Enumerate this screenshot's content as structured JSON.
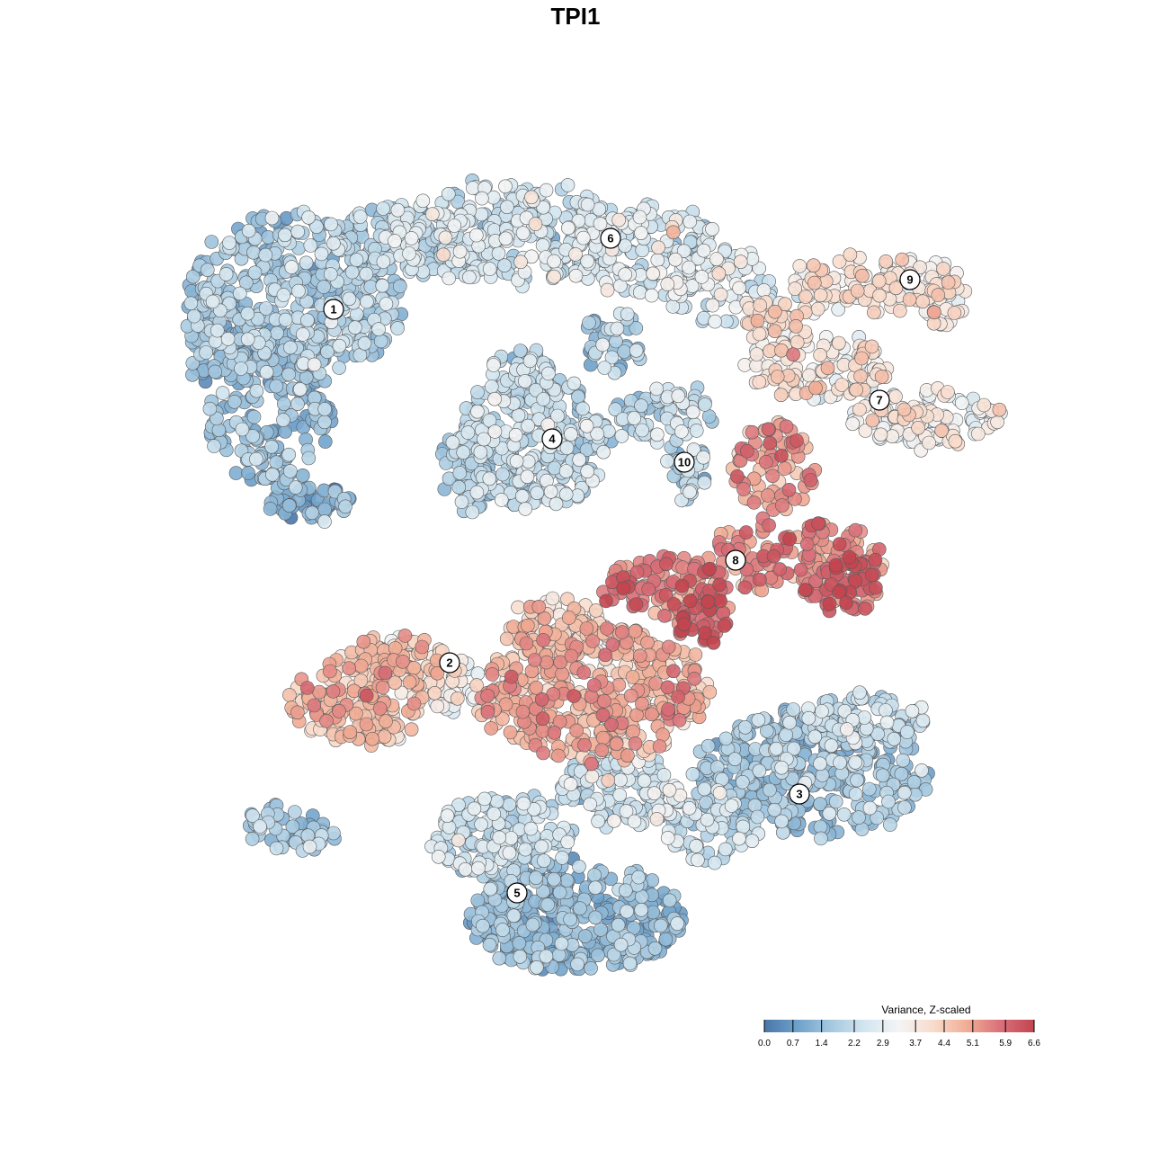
{
  "chart_data": {
    "type": "scatter",
    "title": "TPI1",
    "xlabel": "",
    "ylabel": "",
    "grid": false,
    "axes_visible": false,
    "point_style": {
      "stroke": "#5a5a5a",
      "opacity": 0.9
    },
    "legend": {
      "title": "Variance, Z-scaled",
      "placement": "bottom-right",
      "ticks": [
        0.0,
        0.7,
        1.4,
        2.2,
        2.9,
        3.7,
        4.4,
        5.1,
        5.9,
        6.6
      ],
      "tick_labels": [
        "0.0",
        "0.7",
        "1.4",
        "2.2",
        "2.9",
        "3.7",
        "4.4",
        "5.1",
        "5.9",
        "6.6"
      ],
      "range": [
        0.0,
        6.6
      ],
      "colors": [
        "#4a76a8",
        "#6fa2cb",
        "#a6c9e0",
        "#d4e6f0",
        "#f4f4f4",
        "#f8dccc",
        "#f1ad95",
        "#d9707a",
        "#c2454f"
      ]
    },
    "clusters": [
      {
        "label": "1",
        "mean": 1.7
      },
      {
        "label": "2",
        "mean": 4.3
      },
      {
        "label": "3",
        "mean": 1.6
      },
      {
        "label": "4",
        "mean": 2.1
      },
      {
        "label": "5",
        "mean": 1.3
      },
      {
        "label": "6",
        "mean": 2.4
      },
      {
        "label": "7",
        "mean": 3.4
      },
      {
        "label": "8",
        "mean": 4.9
      },
      {
        "label": "9",
        "mean": 3.6
      },
      {
        "label": "10",
        "mean": 2.2
      }
    ]
  }
}
